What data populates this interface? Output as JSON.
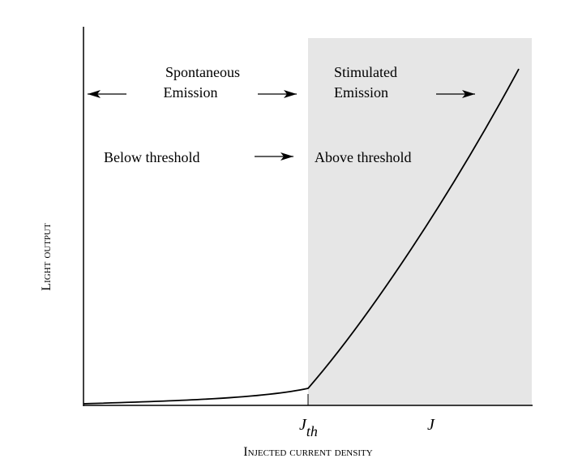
{
  "chart_data": {
    "type": "line",
    "title": "",
    "xlabel": "Injected current density",
    "ylabel": "Light output",
    "x_ticks": [
      {
        "label": "J",
        "subscript": "th"
      },
      {
        "label": "J",
        "subscript": ""
      }
    ],
    "regions": [
      {
        "name": "below-threshold",
        "shaded": false
      },
      {
        "name": "above-threshold",
        "shaded": true,
        "color": "#e6e6e6"
      }
    ],
    "annotations": {
      "spontaneous_line1": "Spontaneous",
      "spontaneous_line2": "Emission",
      "stimulated_line1": "Stimulated",
      "stimulated_line2": "Emission",
      "below": "Below threshold",
      "above": "Above threshold"
    },
    "series": [
      {
        "description": "light output vs current: slow rise below threshold, steep superlinear rise above",
        "color": "#000000"
      }
    ]
  }
}
